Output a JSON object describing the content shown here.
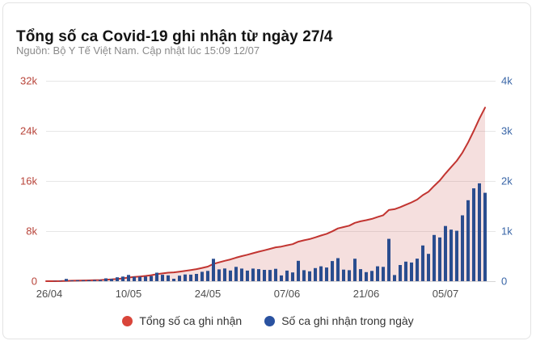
{
  "header": {
    "title": "Tổng số ca Covid-19 ghi nhận từ ngày 27/4",
    "subtitle": "Nguồn: Bộ Y Tế Việt Nam. Cập nhật lúc 15:09 12/07"
  },
  "legend": {
    "items": [
      {
        "label": "Tổng số ca ghi nhận",
        "color": "#d9453a"
      },
      {
        "label": "Số ca ghi nhận trong ngày",
        "color": "#2a52a0"
      }
    ]
  },
  "colors": {
    "grid": "#e7e7e7",
    "baseline": "#d6d6d6",
    "card_border": "#e3e3e3",
    "title_text": "#141414",
    "subtitle_text": "#8b8b8b",
    "left_axis_text": "#b8443a",
    "right_axis_text": "#3a66a7",
    "x_axis_text": "#4d4d4d"
  },
  "chart_data": {
    "type": "combo",
    "title": "Tổng số ca Covid-19 ghi nhận từ ngày 27/4",
    "x_range": [
      "26/04",
      "12/07"
    ],
    "x_tick_labels": [
      "26/04",
      "10/05",
      "24/05",
      "07/06",
      "21/06",
      "05/07"
    ],
    "left_tick_labels": [
      "32k",
      "24k",
      "16k",
      "8k",
      "0"
    ],
    "right_tick_labels": [
      "4k",
      "3k",
      "2k",
      "1k",
      "0"
    ],
    "left_axis_range": [
      0,
      32000
    ],
    "right_axis_range": [
      0,
      4000
    ],
    "grid": "horizontal",
    "legend_position": "bottom",
    "series": [
      {
        "name": "Tổng số ca ghi nhận",
        "type": "area-line",
        "axis": "left",
        "color": "#c23531",
        "fill_opacity": 0.16,
        "values": [
          5,
          13,
          58,
          72,
          92,
          112,
          131,
          155,
          181,
          237,
          283,
          361,
          453,
          578,
          665,
          753,
          845,
          949,
          1118,
          1245,
          1361,
          1409,
          1518,
          1652,
          1783,
          1928,
          2115,
          2320,
          2767,
          3002,
          3256,
          3469,
          3755,
          4006,
          4217,
          4468,
          4709,
          4935,
          5159,
          5406,
          5520,
          5731,
          5906,
          6313,
          6532,
          6728,
          6989,
          7286,
          7558,
          7960,
          8420,
          8650,
          8870,
          9319,
          9559,
          9739,
          9944,
          10241,
          10526,
          11371,
          11494,
          11817,
          12208,
          12580,
          13030,
          13743,
          14288,
          15210,
          16083,
          17185,
          18214,
          19221,
          20535,
          22151,
          24004,
          25957,
          27721
        ]
      },
      {
        "name": "Số ca ghi nhận trong ngày",
        "type": "bar",
        "axis": "right",
        "color": "#2a4d8f",
        "values": [
          5,
          8,
          45,
          14,
          20,
          20,
          19,
          24,
          26,
          56,
          46,
          78,
          92,
          125,
          87,
          88,
          92,
          104,
          169,
          127,
          116,
          48,
          109,
          134,
          131,
          145,
          187,
          205,
          447,
          235,
          254,
          213,
          286,
          251,
          211,
          251,
          241,
          226,
          224,
          247,
          114,
          211,
          175,
          407,
          219,
          196,
          261,
          297,
          272,
          402,
          460,
          230,
          220,
          449,
          240,
          180,
          205,
          297,
          285,
          845,
          123,
          323,
          391,
          372,
          450,
          713,
          545,
          922,
          873,
          1102,
          1029,
          1007,
          1314,
          1616,
          1853,
          1953,
          1764
        ]
      }
    ]
  }
}
